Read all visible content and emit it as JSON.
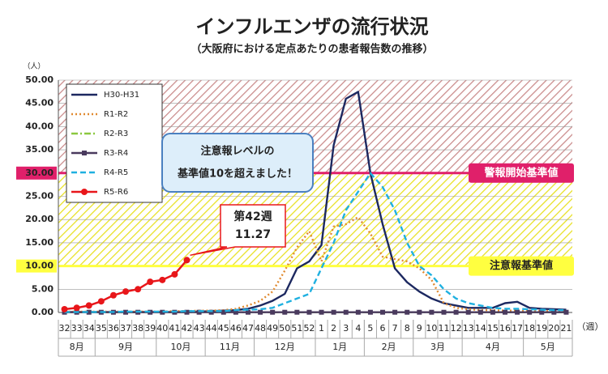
{
  "chart_data": {
    "type": "line",
    "title": "インフルエンザの流行状況",
    "subtitle": "（大阪府における定点あたりの患者報告数の推移）",
    "y_unit": "（人）",
    "x_unit": "（週）",
    "categories": [
      "32",
      "33",
      "34",
      "35",
      "36",
      "37",
      "38",
      "39",
      "40",
      "41",
      "42",
      "43",
      "44",
      "45",
      "46",
      "47",
      "48",
      "49",
      "50",
      "51",
      "52",
      "1",
      "2",
      "3",
      "4",
      "5",
      "6",
      "7",
      "8",
      "9",
      "10",
      "11",
      "12",
      "13",
      "14",
      "15",
      "16",
      "17",
      "18",
      "19",
      "20",
      "21"
    ],
    "months": [
      {
        "label": "8月",
        "span": 3
      },
      {
        "label": "9月",
        "span": 5
      },
      {
        "label": "10月",
        "span": 4
      },
      {
        "label": "11月",
        "span": 4
      },
      {
        "label": "12月",
        "span": 5
      },
      {
        "label": "1月",
        "span": 4
      },
      {
        "label": "2月",
        "span": 4
      },
      {
        "label": "3月",
        "span": 4
      },
      {
        "label": "4月",
        "span": 5
      },
      {
        "label": "5月",
        "span": 4
      }
    ],
    "ylim": [
      0,
      50
    ],
    "yticks": [
      {
        "value": 0,
        "label": "0.00"
      },
      {
        "value": 5,
        "label": "5.00"
      },
      {
        "value": 10,
        "label": "10.00"
      },
      {
        "value": 15,
        "label": "15.00"
      },
      {
        "value": 20,
        "label": "20.00"
      },
      {
        "value": 25,
        "label": "25.00"
      },
      {
        "value": 30,
        "label": "30.00"
      },
      {
        "value": 35,
        "label": "35.00"
      },
      {
        "value": 40,
        "label": "40.00"
      },
      {
        "value": 45,
        "label": "45.00"
      },
      {
        "value": 50,
        "label": "50.00"
      }
    ],
    "thresholds": [
      {
        "value": 30,
        "label": "警報開始基準値",
        "color": "#e0206a",
        "band_color": "#c98a8a",
        "text_color": "#ffffff"
      },
      {
        "value": 10,
        "label": "注意報基準値",
        "color": "#ffff40",
        "band_color": "#e8e020",
        "text_color": "#222222"
      }
    ],
    "legend": "upper left",
    "series": [
      {
        "name": "H30-H31",
        "color": "#1c2860",
        "dash": "solid",
        "marker": "none",
        "values": [
          0.1,
          0.1,
          0.1,
          0.1,
          0.1,
          0.1,
          0.1,
          0.1,
          0.1,
          0.1,
          0.1,
          0.2,
          0.3,
          0.4,
          0.5,
          0.8,
          1.5,
          2.5,
          4,
          9.5,
          11,
          14.5,
          36,
          46,
          47.5,
          30,
          19,
          9.5,
          6.5,
          4.5,
          3,
          2,
          1.5,
          1,
          1,
          1,
          2,
          2.3,
          1,
          0.8,
          0.7,
          0.6
        ]
      },
      {
        "name": "R1-R2",
        "color": "#e08a30",
        "dash": "dotted",
        "marker": "none",
        "values": [
          0.2,
          0.2,
          0.2,
          0.2,
          0.2,
          0.2,
          0.2,
          0.2,
          0.2,
          0.3,
          0.3,
          0.4,
          0.4,
          0.5,
          0.8,
          1.5,
          2.5,
          4.5,
          9,
          14,
          17.5,
          11,
          18.5,
          19,
          20.5,
          17,
          12,
          11.5,
          11,
          9.5,
          7,
          2,
          1,
          0.7,
          0.5,
          0.5,
          0.4,
          0.4,
          0.3,
          0.3,
          0.3,
          0.3
        ]
      },
      {
        "name": "R2-R3",
        "color": "#8cc840",
        "dash": "dashdot",
        "marker": "none",
        "values": [
          0.05,
          0.05,
          0.05,
          0.05,
          0.05,
          0.05,
          0.05,
          0.05,
          0.05,
          0.05,
          0.05,
          0.05,
          0.05,
          0.05,
          0.05,
          0.05,
          0.05,
          0.05,
          0.05,
          0.05,
          0.05,
          0.05,
          0.05,
          0.05,
          0.05,
          0.05,
          0.05,
          0.05,
          0.05,
          0.05,
          0.05,
          0.05,
          0.05,
          0.05,
          0.05,
          0.05,
          0.05,
          0.05,
          0.05,
          0.05,
          0.05,
          0.05
        ]
      },
      {
        "name": "R3-R4",
        "color": "#4a3a5e",
        "dash": "solid",
        "marker": "square",
        "values": [
          0.05,
          0.05,
          0.05,
          0.05,
          0.05,
          0.05,
          0.05,
          0.05,
          0.05,
          0.05,
          0.05,
          0.05,
          0.05,
          0.05,
          0.05,
          0.05,
          0.05,
          0.05,
          0.05,
          0.05,
          0.05,
          0.05,
          0.05,
          0.05,
          0.05,
          0.05,
          0.05,
          0.05,
          0.05,
          0.05,
          0.05,
          0.05,
          0.05,
          0.05,
          0.05,
          0.05,
          0.05,
          0.05,
          0.05,
          0.05,
          0.05,
          0.05
        ]
      },
      {
        "name": "R4-R5",
        "color": "#1fb0e0",
        "dash": "dashed",
        "marker": "none",
        "values": [
          0.1,
          0.1,
          0.1,
          0.1,
          0.1,
          0.2,
          0.2,
          0.2,
          0.2,
          0.2,
          0.3,
          0.3,
          0.3,
          0.3,
          0.5,
          0.6,
          0.7,
          1,
          2,
          3,
          4,
          9.5,
          15,
          22,
          26,
          30,
          27,
          22,
          15,
          10,
          8,
          5,
          3,
          2,
          1.5,
          1,
          0.8,
          0.8,
          0.7,
          0.6,
          0.5,
          0.5
        ]
      },
      {
        "name": "R5-R6",
        "color": "#e8161a",
        "dash": "solid",
        "marker": "circle",
        "values": [
          0.7,
          1,
          1.5,
          2.4,
          3.7,
          4.5,
          5,
          6.6,
          7,
          8.2,
          11.27,
          null,
          null,
          null,
          null,
          null,
          null,
          null,
          null,
          null,
          null,
          null,
          null,
          null,
          null,
          null,
          null,
          null,
          null,
          null,
          null,
          null,
          null,
          null,
          null,
          null,
          null,
          null,
          null,
          null,
          null,
          null
        ],
        "value_labels": [
          null,
          null,
          null,
          null,
          null,
          null,
          null,
          null,
          null,
          null,
          "11.27",
          null,
          null,
          null,
          null,
          null,
          null,
          null,
          null,
          null,
          null,
          null,
          null,
          null,
          null,
          null,
          null,
          null,
          null,
          null,
          null,
          null,
          null,
          null,
          null,
          null,
          null,
          null,
          null,
          null,
          null,
          null
        ]
      }
    ],
    "callout": "第42週",
    "notice": [
      "注意報レベルの",
      "基準値10を超えました！"
    ]
  }
}
